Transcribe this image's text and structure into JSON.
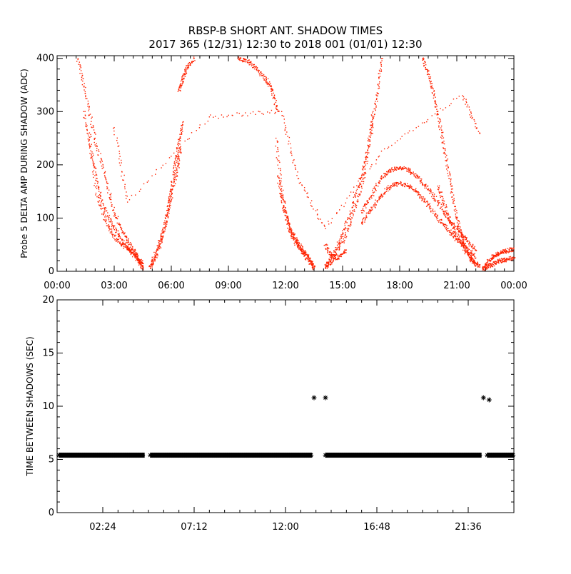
{
  "title_line1": "RBSP-B SHORT ANT. SHADOW TIMES",
  "title_line2": "2017 365 (12/31) 12:30 to 2018 001 (01/01) 12:30",
  "chart_data": [
    {
      "type": "scatter",
      "ylabel": "Probe 5 DELTA AMP DURING SHADOW (ADC)",
      "xlim": [
        0,
        24
      ],
      "ylim": [
        0,
        405
      ],
      "x_ticks": [
        0,
        3,
        6,
        9,
        12,
        15,
        18,
        21,
        24
      ],
      "x_tick_labels": [
        "00:00",
        "03:00",
        "06:00",
        "09:00",
        "12:00",
        "15:00",
        "18:00",
        "21:00",
        "00:00"
      ],
      "y_ticks": [
        0,
        100,
        200,
        300,
        400
      ],
      "y_tick_labels": [
        "0",
        "100",
        "200",
        "300",
        "400"
      ],
      "point_color": "#ff2200",
      "series": [
        {
          "x": [
            1.1,
            1.5,
            2.0,
            2.5,
            3.0,
            3.5,
            4.0,
            4.3,
            4.5
          ],
          "y": [
            400,
            330,
            250,
            180,
            110,
            70,
            40,
            20,
            5
          ]
        },
        {
          "x": [
            1.4,
            1.8,
            2.2,
            2.7,
            3.2,
            3.7,
            4.1,
            4.5
          ],
          "y": [
            300,
            220,
            150,
            100,
            70,
            45,
            28,
            10
          ]
        },
        {
          "x": [
            1.7,
            2.1,
            2.6,
            3.1,
            3.6,
            4.0,
            4.5
          ],
          "y": [
            260,
            140,
            90,
            60,
            45,
            35,
            15
          ]
        },
        {
          "x": [
            4.9,
            5.2,
            5.5,
            5.8,
            6.0,
            6.2,
            6.4,
            6.6
          ],
          "y": [
            5,
            30,
            60,
            110,
            150,
            200,
            240,
            280
          ]
        },
        {
          "x": [
            4.9,
            5.3,
            5.7,
            6.0,
            6.3,
            6.5
          ],
          "y": [
            10,
            45,
            90,
            140,
            190,
            230
          ]
        },
        {
          "x": [
            6.4,
            6.6,
            6.8,
            7.2
          ],
          "y": [
            340,
            360,
            380,
            400
          ]
        },
        {
          "x": [
            9.5,
            10.0,
            10.5,
            11.0,
            11.3,
            11.6
          ],
          "y": [
            400,
            395,
            380,
            360,
            340,
            300
          ]
        },
        {
          "x": [
            11.5,
            11.8,
            12.1,
            12.4,
            12.7,
            13.0,
            13.3,
            13.5
          ],
          "y": [
            250,
            150,
            100,
            70,
            50,
            35,
            20,
            5
          ]
        },
        {
          "x": [
            11.6,
            11.9,
            12.2,
            12.5,
            12.8,
            13.1,
            13.5
          ],
          "y": [
            180,
            120,
            80,
            55,
            40,
            25,
            8
          ]
        },
        {
          "x": [
            14.1,
            14.5,
            15.0,
            15.5,
            16.0,
            16.3,
            16.6
          ],
          "y": [
            5,
            20,
            55,
            100,
            160,
            220,
            300
          ]
        },
        {
          "x": [
            14.1,
            14.5,
            15.0,
            15.5,
            16.0,
            16.5,
            16.8,
            17.1
          ],
          "y": [
            10,
            30,
            70,
            120,
            180,
            260,
            330,
            400
          ]
        },
        {
          "x": [
            14.1,
            14.4,
            14.8,
            15.2
          ],
          "y": [
            50,
            30,
            25,
            40
          ]
        },
        {
          "x": [
            16.0,
            16.5,
            17.0,
            17.5,
            18.0,
            18.5,
            19.0,
            19.5,
            20.0,
            20.5,
            21.0,
            21.5,
            22.0
          ],
          "y": [
            110,
            140,
            175,
            190,
            195,
            190,
            175,
            155,
            130,
            100,
            80,
            60,
            40
          ]
        },
        {
          "x": [
            16.0,
            16.5,
            17.0,
            17.5,
            18.0,
            18.5,
            19.0,
            19.5,
            20.0,
            20.5,
            21.0,
            21.5,
            22.0
          ],
          "y": [
            90,
            115,
            140,
            160,
            165,
            160,
            145,
            125,
            100,
            80,
            60,
            45,
            25
          ]
        },
        {
          "x": [
            19.2,
            19.5,
            19.8,
            20.1,
            20.4,
            20.7,
            21.0,
            21.3,
            21.6,
            21.9,
            22.2
          ],
          "y": [
            400,
            370,
            330,
            280,
            220,
            160,
            100,
            60,
            35,
            20,
            8
          ]
        },
        {
          "x": [
            20.0,
            20.4,
            20.8,
            21.2,
            21.6,
            22.0
          ],
          "y": [
            160,
            120,
            80,
            55,
            30,
            10
          ]
        },
        {
          "x": [
            22.4,
            22.7,
            23.0,
            23.3,
            23.6,
            24.0
          ],
          "y": [
            5,
            20,
            30,
            35,
            38,
            42
          ]
        },
        {
          "x": [
            22.4,
            22.7,
            23.0,
            23.3,
            23.6,
            24.0
          ],
          "y": [
            3,
            10,
            15,
            20,
            22,
            25
          ]
        },
        {
          "x": [
            3.0,
            3.7,
            8.0,
            11.8,
            12.6,
            14.1,
            17.2,
            21.3,
            22.2
          ],
          "y": [
            270,
            130,
            290,
            300,
            180,
            80,
            230,
            330,
            260
          ]
        }
      ]
    },
    {
      "type": "scatter",
      "ylabel": "TIME BETWEEN SHADOWS (SEC)",
      "xlim": [
        0,
        24
      ],
      "ylim": [
        0,
        20
      ],
      "x_ticks": [
        2.4,
        7.2,
        12.0,
        16.8,
        21.6
      ],
      "x_tick_labels": [
        "02:24",
        "07:12",
        "12:00",
        "16:48",
        "21:36"
      ],
      "y_ticks": [
        0,
        5,
        10,
        15,
        20
      ],
      "y_tick_labels": [
        "0",
        "5",
        "10",
        "15",
        "20"
      ],
      "marker": "asterisk",
      "baseline_value": 5.4,
      "baseline_segments": [
        [
          0.1,
          4.6
        ],
        [
          4.9,
          13.4
        ],
        [
          14.1,
          22.3
        ],
        [
          22.6,
          24.0
        ]
      ],
      "outliers": [
        {
          "x": 13.5,
          "y": 10.8
        },
        {
          "x": 14.1,
          "y": 10.8
        },
        {
          "x": 22.4,
          "y": 10.8
        },
        {
          "x": 22.7,
          "y": 10.6
        }
      ]
    }
  ]
}
